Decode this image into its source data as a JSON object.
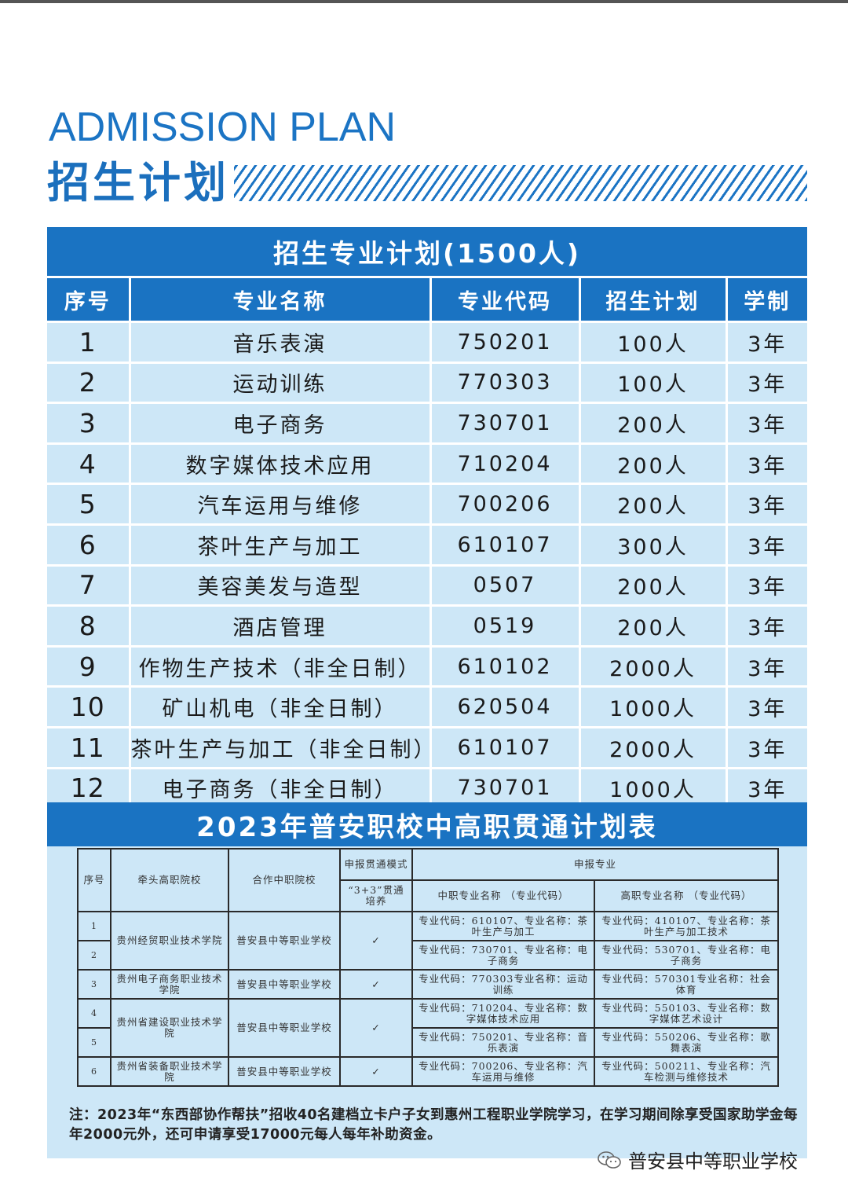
{
  "header": {
    "en_title": "ADMISSION PLAN",
    "cn_title": "招生计划"
  },
  "plan": {
    "title": "招生专业计划(1500人)",
    "columns": [
      "序号",
      "专业名称",
      "专业代码",
      "招生计划",
      "学制"
    ],
    "rows": [
      [
        "1",
        "音乐表演",
        "750201",
        "100人",
        "3年"
      ],
      [
        "2",
        "运动训练",
        "770303",
        "100人",
        "3年"
      ],
      [
        "3",
        "电子商务",
        "730701",
        "200人",
        "3年"
      ],
      [
        "4",
        "数字媒体技术应用",
        "710204",
        "200人",
        "3年"
      ],
      [
        "5",
        "汽车运用与维修",
        "700206",
        "200人",
        "3年"
      ],
      [
        "6",
        "茶叶生产与加工",
        "610107",
        "300人",
        "3年"
      ],
      [
        "7",
        "美容美发与造型",
        "0507",
        "200人",
        "3年"
      ],
      [
        "8",
        "酒店管理",
        "0519",
        "200人",
        "3年"
      ],
      [
        "9",
        "作物生产技术（非全日制）",
        "610102",
        "2000人",
        "3年"
      ],
      [
        "10",
        "矿山机电（非全日制）",
        "620504",
        "1000人",
        "3年"
      ],
      [
        "11",
        "茶叶生产与加工（非全日制）",
        "610107",
        "2000人",
        "3年"
      ],
      [
        "12",
        "电子商务（非全日制）",
        "730701",
        "1000人",
        "3年"
      ]
    ]
  },
  "gt": {
    "title": "2023年普安职校中高职贯通计划表",
    "headers": {
      "no": "序号",
      "lead": "牵头高职院校",
      "partner": "合作中职院校",
      "mode": "申报贯通模式",
      "mode_sub": "“3+3”贯通培养",
      "major": "申报专业",
      "sec": "中职专业名称 （专业代码）",
      "higher": "高职专业名称 （专业代码）"
    },
    "check": "✓",
    "rows": [
      {
        "no": "1",
        "lead": "贵州经贸职业技术学院",
        "partner": "普安县中等职业学校",
        "sec": "专业代码：610107、专业名称：茶叶生产与加工",
        "higher": "专业代码：410107、专业名称：茶叶生产与加工技术"
      },
      {
        "no": "2",
        "sec": "专业代码：730701、专业名称：电子商务",
        "higher": "专业代码：530701、专业名称：电子商务"
      },
      {
        "no": "3",
        "lead": "贵州电子商务职业技术学院",
        "partner": "普安县中等职业学校",
        "sec": "专业代码：770303专业名称：运动训练",
        "higher": "专业代码：570301专业名称：社会体育"
      },
      {
        "no": "4",
        "lead": "贵州省建设职业技术学院",
        "partner": "普安县中等职业学校",
        "sec": "专业代码：710204、专业名称：数字媒体技术应用",
        "higher": "专业代码：550103、专业名称：数字媒体艺术设计"
      },
      {
        "no": "5",
        "sec": "专业代码：750201、专业名称：音乐表演",
        "higher": "专业代码：550206、专业名称：歌舞表演"
      },
      {
        "no": "6",
        "lead": "贵州省装备职业技术学院",
        "partner": "普安县中等职业学校",
        "sec": "专业代码：700206、专业名称：汽车运用与维修",
        "higher": "专业代码：500211、专业名称：汽车检测与维修技术"
      }
    ],
    "note": "注：2023年“东西部协作帮扶”招收40名建档立卡户子女到惠州工程职业学院学习，在学习期间除享受国家助学金每年2000元外，还可申请享受17000元每人每年补助资金。"
  },
  "watermark": {
    "icon": "wechat-icon",
    "text": "普安县中等职业学校"
  }
}
